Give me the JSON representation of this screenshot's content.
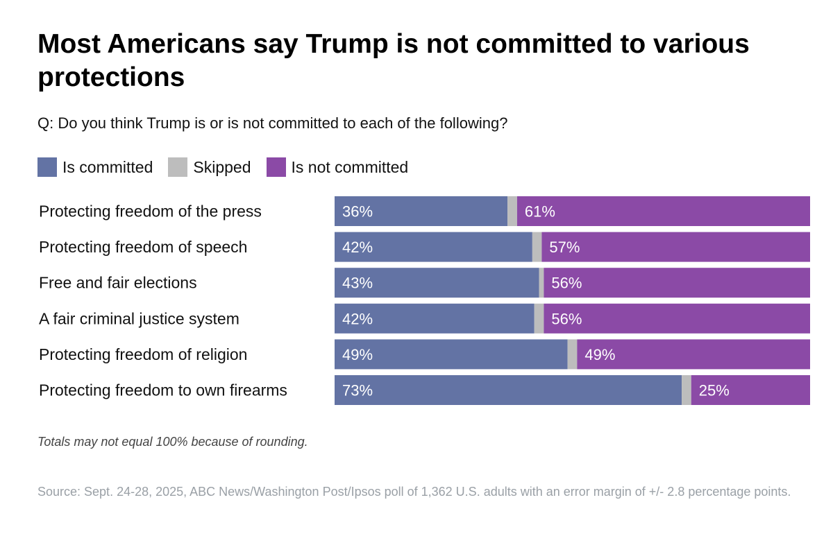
{
  "header": {
    "title": "Most Americans say Trump is not committed to various protections",
    "subtitle": "Q: Do you think Trump is or is not committed to each of the following?"
  },
  "legend": [
    {
      "label": "Is committed",
      "color": "#6373a4"
    },
    {
      "label": "Skipped",
      "color": "#bdbdbd"
    },
    {
      "label": "Is not committed",
      "color": "#8b4aa6"
    }
  ],
  "chart_data": {
    "type": "bar",
    "orientation": "horizontal",
    "stacked": true,
    "categories": [
      "Protecting freedom of the press",
      "Protecting freedom of speech",
      "Free and fair elections",
      "A fair criminal justice system",
      "Protecting freedom of religion",
      "Protecting freedom to own firearms"
    ],
    "series": [
      {
        "name": "Is committed",
        "color": "#6373a4",
        "values": [
          36,
          42,
          43,
          42,
          49,
          73
        ],
        "labels": [
          "36%",
          "42%",
          "43%",
          "42%",
          "49%",
          "73%"
        ]
      },
      {
        "name": "Skipped",
        "color": "#bdbdbd",
        "values": [
          2,
          2,
          1,
          2,
          2,
          2
        ]
      },
      {
        "name": "Is not committed",
        "color": "#8b4aa6",
        "values": [
          61,
          57,
          56,
          56,
          49,
          25
        ],
        "labels": [
          "61%",
          "57%",
          "56%",
          "56%",
          "49%",
          "25%"
        ]
      }
    ],
    "xlim": [
      0,
      100
    ],
    "legend_position": "top-left",
    "grid": false
  },
  "footer": {
    "note": "Totals may not equal 100% because of rounding.",
    "source": "Source: Sept. 24-28, 2025, ABC News/Washington Post/Ipsos poll of 1,362 U.S. adults with an error margin of +/- 2.8 percentage points."
  }
}
